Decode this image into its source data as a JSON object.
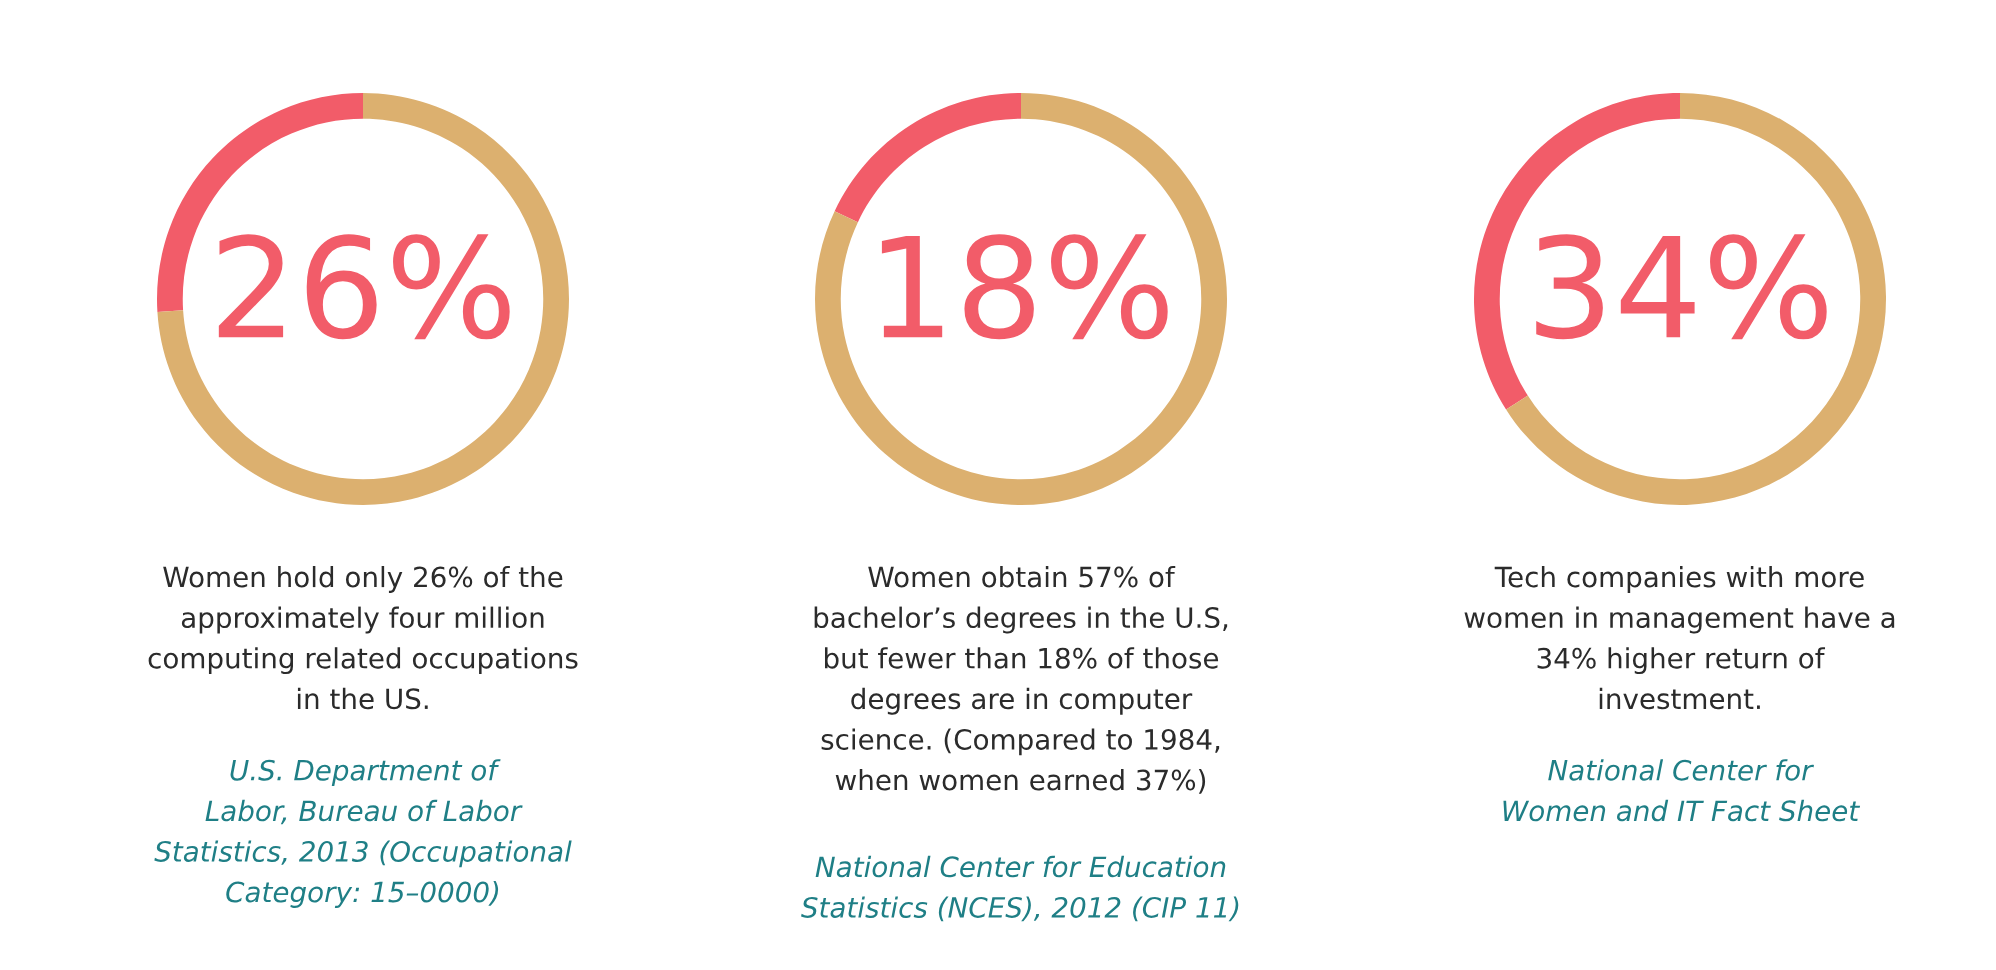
{
  "chart_data": [
    {
      "type": "donut",
      "categories": [
        null,
        null
      ],
      "values": [
        26,
        74
      ],
      "colors": [
        "#f25c69",
        "#dcb06f"
      ],
      "annotations": [
        "26%",
        "Women hold only 26% of the\napproximately four million\ncomputing related occupations\nin the US.",
        "U.S. Department of\nLabor, Bureau of Labor\nStatistics, 2013 (Occupational\nCategory: 15–0000)"
      ]
    },
    {
      "type": "donut",
      "categories": [
        null,
        null
      ],
      "values": [
        18,
        82
      ],
      "colors": [
        "#f25c69",
        "#dcb06f"
      ],
      "annotations": [
        "18%",
        "Women obtain 57% of\nbachelor’s degrees in the U.S,\nbut fewer than 18% of those\ndegrees are in computer\nscience. (Compared to 1984,\nwhen women earned 37%)",
        "National Center for Education\nStatistics (NCES), 2012 (CIP 11)"
      ]
    },
    {
      "type": "donut",
      "categories": [
        null,
        null
      ],
      "values": [
        34,
        66
      ],
      "colors": [
        "#f25c69",
        "#dcb06f"
      ],
      "annotations": [
        "34%",
        "Tech companies with more\nwomen in management have a\n34% higher return of\ninvestment.",
        "National Center for\nWomen and IT Fact Sheet"
      ]
    }
  ]
}
